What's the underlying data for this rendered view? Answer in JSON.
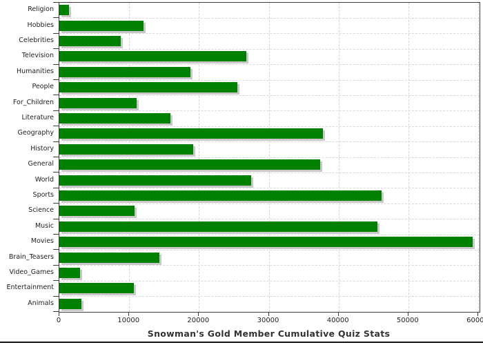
{
  "title": "Snowman's Gold Member Cumulative Quiz Stats",
  "colors": {
    "bar": "#008000",
    "bar_shadow": "#c9c9c9",
    "grid": "#d6d6d6",
    "axis": "#3c3c3c",
    "label_text": "#222222",
    "title_text": "#333333",
    "background": "#ffffff",
    "bottom_rule": "#131313"
  },
  "chart_data": {
    "type": "bar",
    "orientation": "horizontal",
    "title": "Snowman's Gold Member Cumulative Quiz Stats",
    "categories": [
      "Religion",
      "Hobbies",
      "Celebrities",
      "Television",
      "Humanities",
      "People",
      "For_Children",
      "Literature",
      "Geography",
      "History",
      "General",
      "World",
      "Sports",
      "Science",
      "Music",
      "Movies",
      "Brain_Teasers",
      "Video_Games",
      "Entertainment",
      "Animals"
    ],
    "values": [
      1400,
      12100,
      8800,
      26800,
      18800,
      25500,
      11100,
      15900,
      37800,
      19200,
      37400,
      27500,
      46200,
      10800,
      45600,
      59200,
      14300,
      3000,
      10700,
      3200
    ],
    "xlabel": "",
    "ylabel": "",
    "xlim": [
      0,
      60000
    ],
    "xticks": [
      0,
      10000,
      20000,
      30000,
      40000,
      50000,
      60000
    ],
    "xtick_labels": [
      "0",
      "10000",
      "20000",
      "30000",
      "40000",
      "50000",
      "60000"
    ],
    "grid": "dashed",
    "legend": "none",
    "bar_color": "#008000"
  }
}
